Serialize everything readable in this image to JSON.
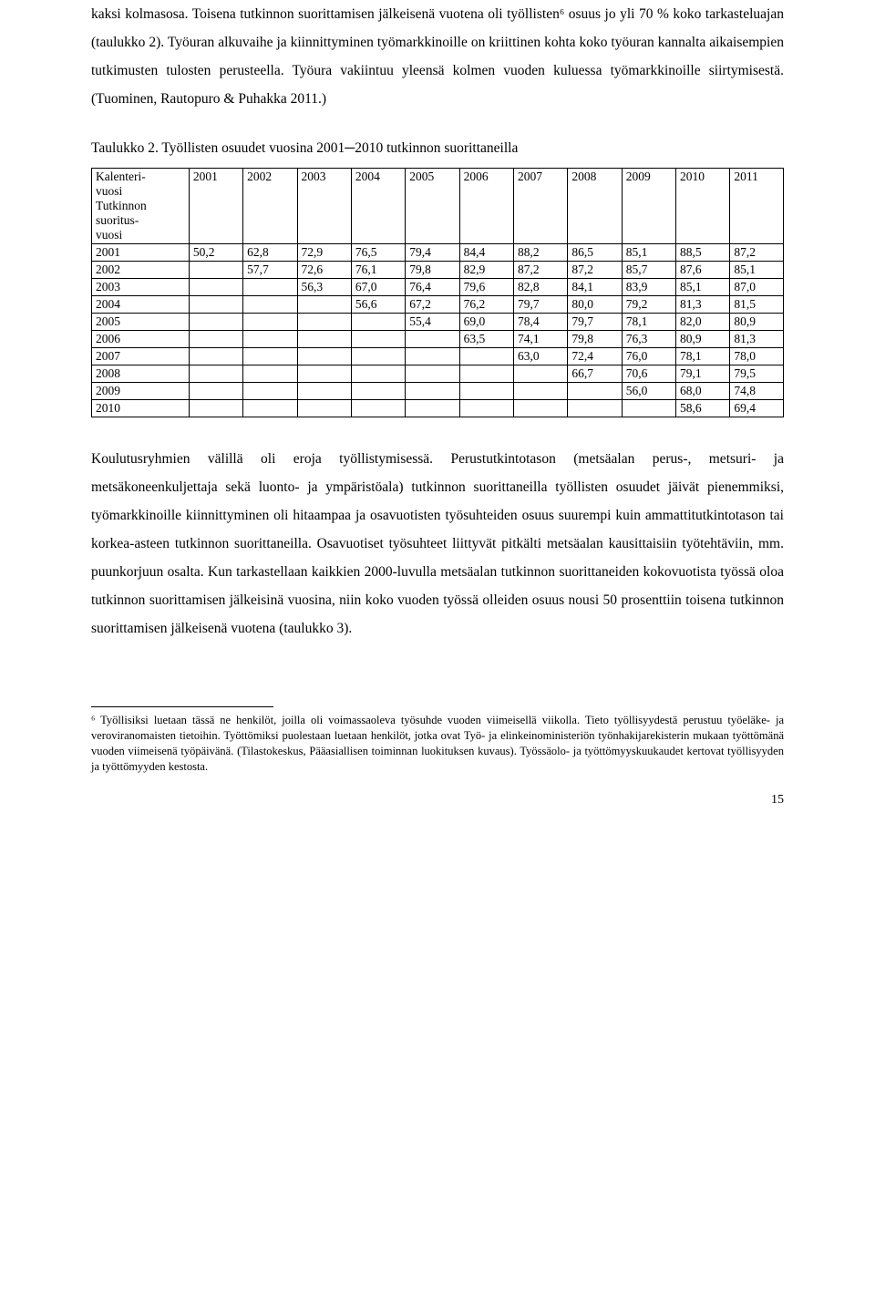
{
  "para1": "kaksi kolmasosa. Toisena tutkinnon suorittamisen jälkeisenä vuotena oli työllisten⁶ osuus jo yli 70 % koko tarkasteluajan (taulukko 2). Työuran alkuvaihe ja kiinnittyminen työmarkkinoille on kriittinen kohta koko työuran kannalta aikaisempien tutkimusten tulosten perusteella. Työura vakiintuu yleensä kolmen vuoden kuluessa työmarkkinoille siirtymisestä. (Tuominen, Rautopuro & Puhakka 2011.)",
  "table_caption": "Taulukko 2. Työllisten osuudet vuosina 2001─2010 tutkinnon suorittaneilla",
  "table": {
    "corner_label": "Kalenteri-\nvuosi\nTutkinnon\nsuoritus-\nvuosi",
    "col_years": [
      "2001",
      "2002",
      "2003",
      "2004",
      "2005",
      "2006",
      "2007",
      "2008",
      "2009",
      "2010",
      "2011"
    ],
    "row_years": [
      "2001",
      "2002",
      "2003",
      "2004",
      "2005",
      "2006",
      "2007",
      "2008",
      "2009",
      "2010"
    ],
    "cells": [
      [
        "50,2",
        "62,8",
        "72,9",
        "76,5",
        "79,4",
        "84,4",
        "88,2",
        "86,5",
        "85,1",
        "88,5",
        "87,2"
      ],
      [
        "",
        "57,7",
        "72,6",
        "76,1",
        "79,8",
        "82,9",
        "87,2",
        "87,2",
        "85,7",
        "87,6",
        "85,1"
      ],
      [
        "",
        "",
        "56,3",
        "67,0",
        "76,4",
        "79,6",
        "82,8",
        "84,1",
        "83,9",
        "85,1",
        "87,0"
      ],
      [
        "",
        "",
        "",
        "56,6",
        "67,2",
        "76,2",
        "79,7",
        "80,0",
        "79,2",
        "81,3",
        "81,5"
      ],
      [
        "",
        "",
        "",
        "",
        "55,4",
        "69,0",
        "78,4",
        "79,7",
        "78,1",
        "82,0",
        "80,9"
      ],
      [
        "",
        "",
        "",
        "",
        "",
        "63,5",
        "74,1",
        "79,8",
        "76,3",
        "80,9",
        "81,3"
      ],
      [
        "",
        "",
        "",
        "",
        "",
        "",
        "63,0",
        "72,4",
        "76,0",
        "78,1",
        "78,0"
      ],
      [
        "",
        "",
        "",
        "",
        "",
        "",
        "",
        "66,7",
        "70,6",
        "79,1",
        "79,5"
      ],
      [
        "",
        "",
        "",
        "",
        "",
        "",
        "",
        "",
        "56,0",
        "68,0",
        "74,8"
      ],
      [
        "",
        "",
        "",
        "",
        "",
        "",
        "",
        "",
        "",
        "58,6",
        "69,4"
      ]
    ]
  },
  "para2": "Koulutusryhmien välillä oli eroja työllistymisessä. Perustutkintotason (metsäalan perus-, metsuri- ja metsäkoneenkuljettaja sekä luonto- ja ympäristöala) tutkinnon suorittaneilla työllisten osuudet jäivät pienemmiksi, työmarkkinoille kiinnittyminen oli hitaampaa ja osavuotisten työsuhteiden osuus suurempi kuin ammattitutkintotason tai korkea-asteen tutkinnon suorittaneilla. Osavuotiset työsuhteet liittyvät pitkälti metsäalan kausittaisiin työtehtäviin, mm. puunkorjuun osalta. Kun tarkastellaan kaikkien 2000-luvulla metsäalan tutkinnon suorittaneiden kokovuotista työssä oloa tutkinnon suorittamisen jälkeisinä vuosina, niin koko vuoden työssä olleiden osuus nousi 50 prosenttiin toisena tutkinnon suorittamisen jälkeisenä vuotena (taulukko 3).",
  "footnote": "⁶ Työllisiksi luetaan tässä ne henkilöt, joilla oli voimassaoleva työsuhde vuoden viimeisellä viikolla. Tieto työllisyydestä perustuu työeläke- ja veroviranomaisten tietoihin. Työttömiksi puolestaan luetaan henkilöt, jotka ovat Työ- ja elinkeinoministeriön työnhakijarekisterin mukaan työttömänä vuoden viimeisenä työpäivänä. (Tilastokeskus, Pääasiallisen toiminnan luokituksen kuvaus). Työssäolo- ja työttömyyskuukaudet kertovat työllisyyden ja työttömyyden kestosta.",
  "page_number": "15"
}
